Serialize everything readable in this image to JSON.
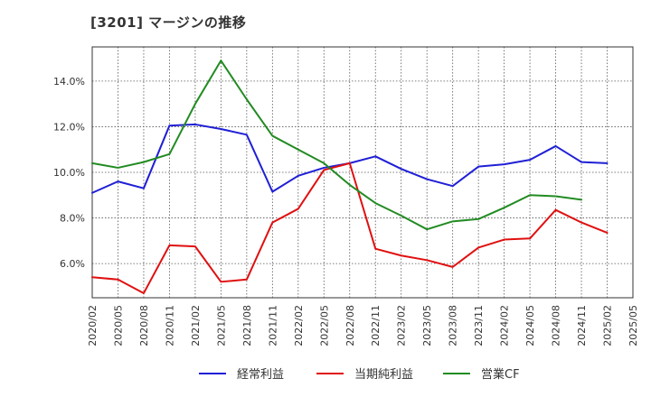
{
  "chart_data": {
    "type": "line",
    "title": "[3201]  マージンの推移",
    "xlabel": "",
    "ylabel": "",
    "ylim": [
      4.5,
      15.5
    ],
    "y_ticks": [
      6.0,
      8.0,
      10.0,
      12.0,
      14.0
    ],
    "y_tick_labels": [
      "6.0%",
      "8.0%",
      "10.0%",
      "12.0%",
      "14.0%"
    ],
    "grid": true,
    "legend_position": "bottom",
    "categories": [
      "2020/02",
      "2020/05",
      "2020/08",
      "2020/11",
      "2021/02",
      "2021/05",
      "2021/08",
      "2021/11",
      "2022/02",
      "2022/05",
      "2022/08",
      "2022/11",
      "2023/02",
      "2023/05",
      "2023/08",
      "2023/11",
      "2024/02",
      "2024/05",
      "2024/08",
      "2024/11",
      "2025/02",
      "2025/05"
    ],
    "series": [
      {
        "name": "経常利益",
        "color": "#1f1fd6",
        "values": [
          9.1,
          9.6,
          9.3,
          12.05,
          12.1,
          11.9,
          11.65,
          9.15,
          9.85,
          10.2,
          10.4,
          10.7,
          10.15,
          9.7,
          9.4,
          10.25,
          10.35,
          10.55,
          11.15,
          10.45,
          10.4,
          null
        ]
      },
      {
        "name": "当期純利益",
        "color": "#e01010",
        "values": [
          5.4,
          5.3,
          4.7,
          6.8,
          6.75,
          5.2,
          5.3,
          7.8,
          8.4,
          10.1,
          10.4,
          6.65,
          6.35,
          6.15,
          5.85,
          6.7,
          7.05,
          7.1,
          8.35,
          7.8,
          7.35,
          null
        ]
      },
      {
        "name": "営業CF",
        "color": "#228b22",
        "values": [
          10.4,
          10.2,
          10.45,
          10.8,
          13.0,
          14.9,
          13.2,
          11.6,
          11.0,
          10.4,
          9.45,
          8.65,
          8.1,
          7.5,
          7.85,
          7.95,
          8.45,
          9.0,
          8.95,
          8.8,
          null,
          null
        ]
      }
    ]
  }
}
